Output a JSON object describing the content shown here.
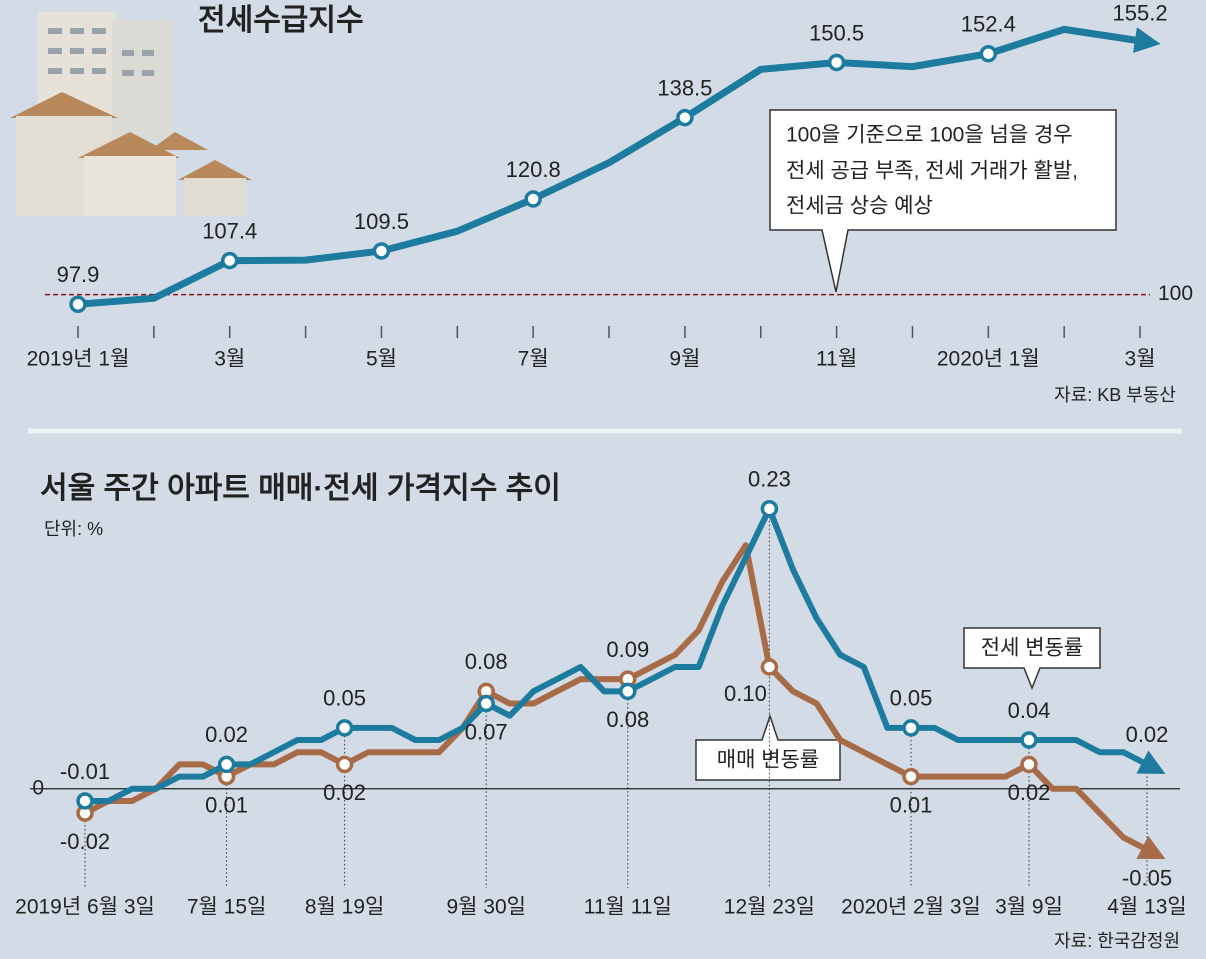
{
  "chart_data": [
    {
      "type": "line",
      "title": "전세수급지수",
      "categories": [
        "2019년 1월",
        null,
        "3월",
        null,
        "5월",
        null,
        "7월",
        null,
        "9월",
        null,
        "11월",
        null,
        "2020년 1월",
        null,
        "3월"
      ],
      "values": [
        97.9,
        99.2,
        107.4,
        107.5,
        109.5,
        113.8,
        120.8,
        128.7,
        138.5,
        149.0,
        150.5,
        149.6,
        152.4,
        157.7,
        155.2
      ],
      "value_labels": [
        "97.9",
        null,
        "107.4",
        null,
        "109.5",
        null,
        "120.8",
        null,
        "138.5",
        null,
        "150.5",
        null,
        "152.4",
        null,
        "155.2"
      ],
      "color": "#1c7b9e",
      "ylim": [
        96,
        158
      ],
      "reference_line": 100,
      "reference_color": "#8b1a1a",
      "annotation": [
        "100을 기준으로 100을 넘을 경우",
        "전세 공급 부족, 전세 거래가 활발,",
        "전세금 상승 예상"
      ],
      "source": "자료: KB 부동산"
    },
    {
      "type": "line",
      "title": "서울 주간 아파트 매매·전세 가격지수 추이",
      "subtitle": "단위: %",
      "categories": [
        "2019년 6월 3일",
        null,
        null,
        null,
        null,
        null,
        "7월 15일",
        null,
        null,
        null,
        null,
        "8월 19일",
        null,
        null,
        null,
        null,
        null,
        "9월 30일",
        null,
        null,
        null,
        null,
        null,
        "11월 11일",
        null,
        null,
        null,
        null,
        null,
        "12월 23일",
        null,
        null,
        null,
        null,
        null,
        "2020년 2월 3일",
        null,
        null,
        null,
        null,
        "3월 9일",
        null,
        null,
        null,
        null,
        "4월 13일"
      ],
      "series": [
        {
          "name": "전세 변동률",
          "color": "#1c7b9e",
          "values": [
            -0.01,
            -0.01,
            0,
            0,
            0.01,
            0.01,
            0.02,
            0.02,
            0.03,
            0.04,
            0.04,
            0.05,
            0.05,
            0.05,
            0.04,
            0.04,
            0.05,
            0.07,
            0.06,
            0.08,
            0.09,
            0.1,
            0.08,
            0.08,
            0.09,
            0.1,
            0.1,
            0.15,
            0.19,
            0.23,
            0.18,
            0.14,
            0.11,
            0.1,
            0.05,
            0.05,
            0.05,
            0.04,
            0.04,
            0.04,
            0.04,
            0.04,
            0.04,
            0.03,
            0.03,
            0.02
          ],
          "value_labels": [
            "-0.01",
            null,
            null,
            null,
            null,
            null,
            "0.02",
            null,
            null,
            null,
            null,
            "0.05",
            null,
            null,
            null,
            null,
            null,
            "0.07",
            null,
            null,
            null,
            null,
            null,
            "0.08",
            null,
            null,
            null,
            null,
            null,
            "0.23",
            null,
            null,
            null,
            null,
            null,
            "0.05",
            null,
            null,
            null,
            null,
            "0.04",
            null,
            null,
            null,
            null,
            "0.02"
          ]
        },
        {
          "name": "매매 변동률",
          "color": "#a86b47",
          "values": [
            -0.02,
            -0.01,
            -0.01,
            0,
            0.02,
            0.02,
            0.01,
            0.02,
            0.02,
            0.03,
            0.03,
            0.02,
            0.03,
            0.03,
            0.03,
            0.03,
            0.05,
            0.08,
            0.07,
            0.07,
            0.08,
            0.09,
            0.09,
            0.09,
            0.1,
            0.11,
            0.13,
            0.17,
            0.2,
            0.1,
            0.08,
            0.07,
            0.04,
            0.03,
            0.02,
            0.01,
            0.01,
            0.01,
            0.01,
            0.01,
            0.02,
            0,
            0,
            -0.02,
            -0.04,
            -0.05
          ],
          "value_labels": [
            "-0.02",
            null,
            null,
            null,
            null,
            null,
            "0.01",
            null,
            null,
            null,
            null,
            "0.02",
            null,
            null,
            null,
            null,
            null,
            "0.08",
            null,
            null,
            null,
            null,
            null,
            "0.09",
            null,
            null,
            null,
            null,
            null,
            "0.10",
            null,
            null,
            null,
            null,
            null,
            "0.01",
            null,
            null,
            null,
            null,
            "0.02",
            null,
            null,
            null,
            null,
            "-0.05"
          ]
        }
      ],
      "ylim": [
        -0.07,
        0.27
      ],
      "yticks": [
        0
      ],
      "source": "자료: 한국감정원"
    }
  ]
}
